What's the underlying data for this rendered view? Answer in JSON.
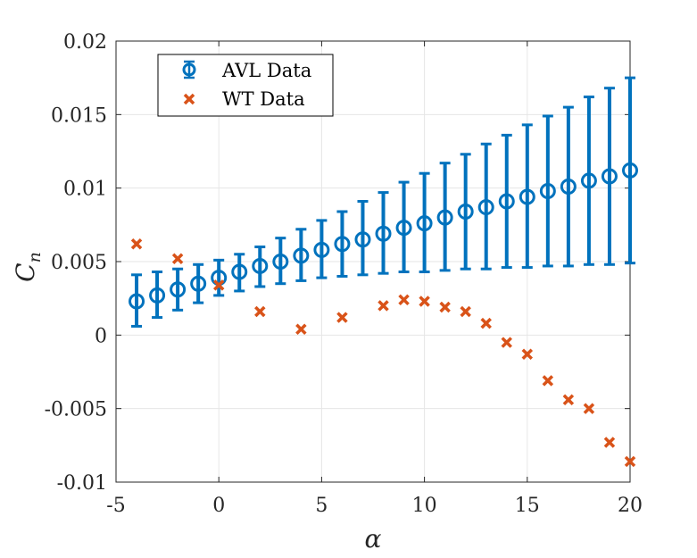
{
  "chart_data": {
    "type": "scatter",
    "xlabel": "α",
    "ylabel": {
      "main": "C",
      "sub": "n"
    },
    "xlim": [
      -5,
      20
    ],
    "ylim": [
      -0.01,
      0.02
    ],
    "xticks": [
      -5,
      0,
      5,
      10,
      15,
      20
    ],
    "xtick_labels": [
      "-5",
      "0",
      "5",
      "10",
      "15",
      "20"
    ],
    "yticks": [
      -0.01,
      -0.005,
      0,
      0.005,
      0.01,
      0.015,
      0.02
    ],
    "ytick_labels": [
      "-0.01",
      "-0.005",
      "0",
      "0.005",
      "0.01",
      "0.015",
      "0.02"
    ],
    "grid": true,
    "legend": {
      "placement": "top-left",
      "entries": [
        "AVL Data",
        "WT Data"
      ]
    },
    "series": [
      {
        "name": "AVL Data",
        "marker": "circle",
        "color": "#0072BD",
        "x": [
          -4,
          -3,
          -2,
          -1,
          0,
          1,
          2,
          3,
          4,
          5,
          6,
          7,
          8,
          9,
          10,
          11,
          12,
          13,
          14,
          15,
          16,
          17,
          18,
          19,
          20
        ],
        "y": [
          0.0023,
          0.0027,
          0.0031,
          0.0035,
          0.0039,
          0.0043,
          0.0047,
          0.005,
          0.0054,
          0.0058,
          0.0062,
          0.0065,
          0.0069,
          0.0073,
          0.0076,
          0.008,
          0.0084,
          0.0087,
          0.0091,
          0.0094,
          0.0098,
          0.0101,
          0.0105,
          0.0108,
          0.0112
        ],
        "err_low": [
          0.0006,
          0.0012,
          0.0017,
          0.0022,
          0.0027,
          0.003,
          0.0033,
          0.0035,
          0.0037,
          0.0039,
          0.004,
          0.0041,
          0.0042,
          0.0043,
          0.0043,
          0.0044,
          0.0045,
          0.0045,
          0.0046,
          0.0046,
          0.0047,
          0.0047,
          0.0048,
          0.0048,
          0.0049
        ],
        "err_high": [
          0.0041,
          0.0043,
          0.0045,
          0.0048,
          0.0051,
          0.0055,
          0.006,
          0.0066,
          0.0072,
          0.0078,
          0.0084,
          0.0091,
          0.0097,
          0.0104,
          0.011,
          0.0117,
          0.0123,
          0.013,
          0.0136,
          0.0143,
          0.0149,
          0.0155,
          0.0162,
          0.0168,
          0.0175
        ]
      },
      {
        "name": "WT Data",
        "marker": "x",
        "color": "#D95319",
        "x": [
          -4,
          -2,
          0,
          2,
          4,
          6,
          8,
          9,
          10,
          11,
          12,
          13,
          14,
          15,
          16,
          17,
          18,
          19,
          20
        ],
        "y": [
          0.0062,
          0.0052,
          0.0034,
          0.0016,
          0.0004,
          0.0012,
          0.002,
          0.0024,
          0.0023,
          0.0019,
          0.0016,
          0.0008,
          -0.0005,
          -0.0013,
          -0.0031,
          -0.0044,
          -0.005,
          -0.0073,
          -0.0086
        ]
      }
    ]
  }
}
